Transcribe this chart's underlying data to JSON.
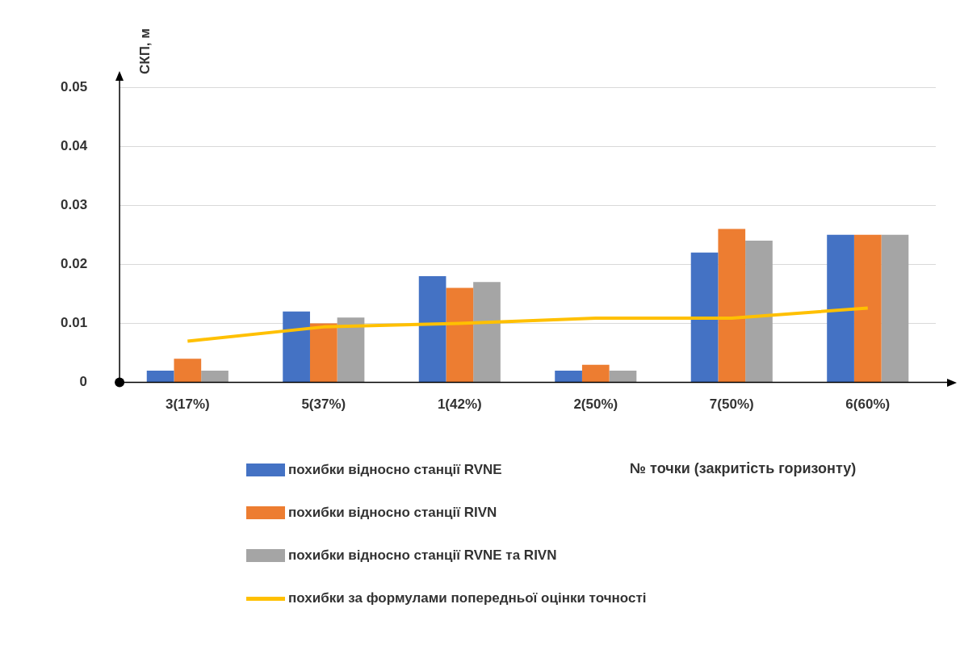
{
  "chart_data": {
    "type": "bar",
    "ylabel": "СКП, м",
    "xlabel": "№ точки (закритість горизонту)",
    "categories": [
      "3(17%)",
      "5(37%)",
      "1(42%)",
      "2(50%)",
      "7(50%)",
      "6(60%)"
    ],
    "series": [
      {
        "name": "похибки відносно станції RVNE",
        "color": "#4472c4",
        "values": [
          0.002,
          0.012,
          0.018,
          0.002,
          0.022,
          0.025
        ]
      },
      {
        "name": "похибки відносно станції RIVN",
        "color": "#ed7d31",
        "values": [
          0.004,
          0.01,
          0.016,
          0.003,
          0.026,
          0.025
        ]
      },
      {
        "name": "похибки відносно станції RVNE та RIVN",
        "color": "#a5a5a5",
        "values": [
          0.002,
          0.011,
          0.017,
          0.002,
          0.024,
          0.025
        ]
      },
      {
        "name": "похибки за формулами попередньої оцінки точності",
        "type": "line",
        "color": "#ffc000",
        "values": [
          0.007,
          0.0094,
          0.01,
          0.0109,
          0.0109,
          0.0126
        ]
      }
    ],
    "ylim": [
      0,
      0.05
    ],
    "yticks": [
      0,
      0.01,
      0.02,
      0.03,
      0.04,
      0.05
    ],
    "grid": "y",
    "legend": "bottom",
    "marker": "none"
  }
}
